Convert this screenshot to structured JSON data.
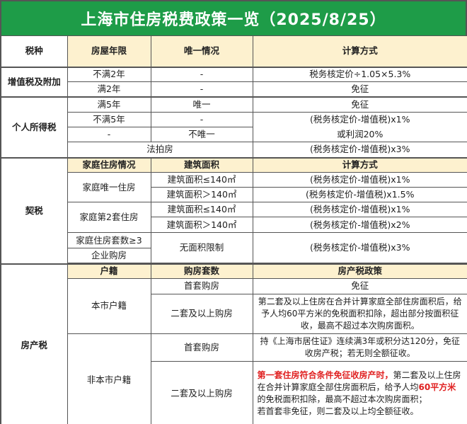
{
  "title": "上海市住房税费政策一览（2025/8/25）",
  "colors": {
    "title_bg": "#1e9c48",
    "header_bg": "#fdf1cf",
    "highlight": "#e02020"
  },
  "section1": {
    "headers": [
      "税种",
      "房屋年限",
      "唯一情况",
      "计算方式"
    ],
    "vat": {
      "name": "增值税及附加",
      "rows": [
        {
          "years": "不满2年",
          "unique": "-",
          "calc": "税务核定价÷1.05×5.3%"
        },
        {
          "years": "满2年",
          "unique": "-",
          "calc": "免征"
        }
      ]
    },
    "income": {
      "name": "个人所得税",
      "rows": [
        {
          "years": "满5年",
          "unique": "唯一",
          "calc": "免征"
        },
        {
          "years": "不满5年",
          "unique": "-",
          "calc": "(税务核定价-增值税)x1%"
        },
        {
          "years": "-",
          "unique": "不唯一",
          "calc": "或利润20%"
        }
      ],
      "auction": "法拍房",
      "auction_calc": "(税务核定价-增值税)x3%"
    }
  },
  "deed": {
    "name": "契税",
    "headers": [
      "家庭住房情况",
      "建筑面积",
      "计算方式"
    ],
    "groups": [
      {
        "label": "家庭唯一住房",
        "rows": [
          {
            "area": "建筑面积≤140㎡",
            "calc": "(税务核定价-增值税)x1%"
          },
          {
            "area": "建筑面积＞140㎡",
            "calc": "(税务核定价-增值税)x1.5%"
          }
        ]
      },
      {
        "label": "家庭第2套住房",
        "rows": [
          {
            "area": "建筑面积≤140㎡",
            "calc": "(税务核定价-增值税)x1%"
          },
          {
            "area": "建筑面积＞140㎡",
            "calc": "(税务核定价-增值税)x2%"
          }
        ]
      }
    ],
    "multi": "家庭住房套数≥3",
    "company": "企业购房",
    "no_limit": "无面积限制",
    "multi_calc": "(税务核定价-增值税)x3%"
  },
  "property": {
    "name": "房产税",
    "headers": [
      "户籍",
      "购房套数",
      "房产税政策"
    ],
    "local": {
      "label": "本市户籍",
      "first": "首套购房",
      "first_policy": "免征",
      "second": "二套及以上购房",
      "second_policy": "第二套及以上住房在合并计算家庭全部住房面积后，给予人均60平方米的免税面积扣除，超出部分按面积征收，最高不超过本次购房面积。"
    },
    "nonlocal": {
      "label": "非本市户籍",
      "first": "首套购房",
      "first_policy": "持《上海市居住证》连续满3年或积分达120分，免征收房产税；若无则全额征收。",
      "second": "二套及以上购房",
      "second_red1": "第一套住房符合条件免征收房产时，",
      "second_p1": "第二套及以上住房在合并计算家庭全部住房面积后，给予人均",
      "second_red2": "60平方米",
      "second_p2": "的免税面积扣除，最高不超过本次购房面积；",
      "second_p3": "若首套非免征，则二套及以上均全额征收。"
    }
  }
}
